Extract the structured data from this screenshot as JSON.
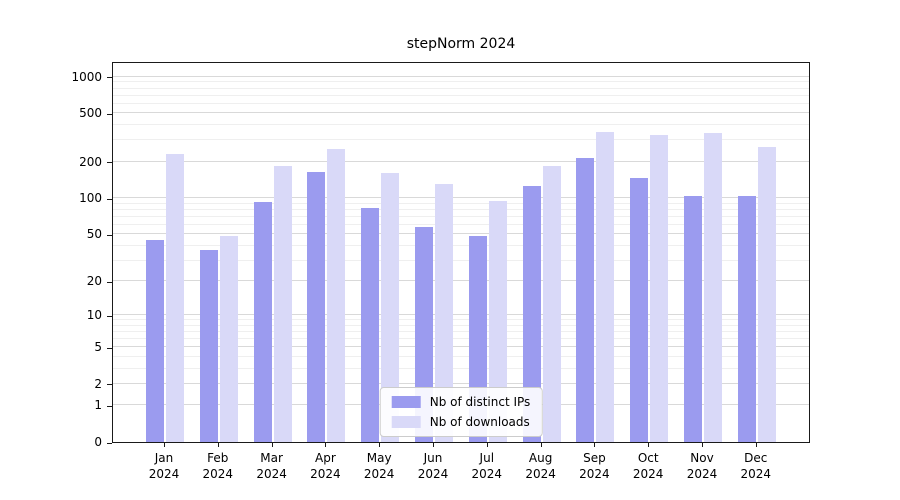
{
  "chart_data": {
    "type": "bar",
    "title": "stepNorm 2024",
    "year_label": "2024",
    "categories": [
      "Jan",
      "Feb",
      "Mar",
      "Apr",
      "May",
      "Jun",
      "Jul",
      "Aug",
      "Sep",
      "Oct",
      "Nov",
      "Dec"
    ],
    "series": [
      {
        "name": "Nb of distinct IPs",
        "color": "#9b9bef",
        "values": [
          45,
          37,
          93,
          165,
          83,
          57,
          48,
          125,
          215,
          148,
          105,
          105
        ]
      },
      {
        "name": "Nb of downloads",
        "color": "#d9d9f8",
        "values": [
          230,
          48,
          185,
          255,
          160,
          132,
          95,
          185,
          350,
          330,
          345,
          265
        ]
      }
    ],
    "yticks": [
      0,
      1,
      2,
      5,
      10,
      20,
      50,
      100,
      200,
      500,
      1000
    ],
    "yscale": "log(1+v)",
    "ylim": [
      0,
      1350
    ],
    "grid": true,
    "legend_position": "lower center"
  }
}
